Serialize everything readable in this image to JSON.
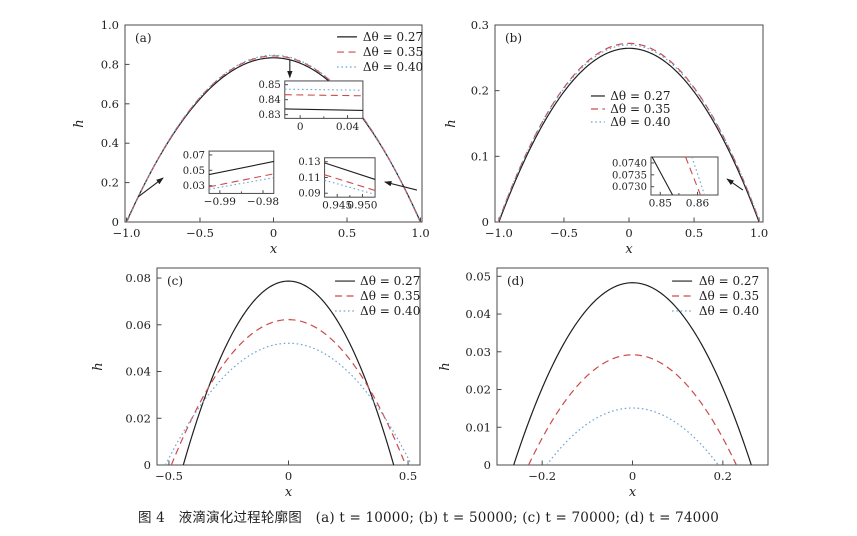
{
  "figure": {
    "caption": "图 4　液滴演化过程轮廓图　(a) t = 10000; (b) t = 50000; (c) t = 70000; (d) t = 74000"
  },
  "colors": {
    "black": "#1f1f1f",
    "red": "#cd4a4a",
    "blue": "#6fa5d3",
    "frame": "#4a4a4a",
    "text": "#1f1f1f"
  },
  "chart_data": [
    {
      "id": "a",
      "panel_label": "(a)",
      "type": "line",
      "xlabel": "x",
      "ylabel": "h",
      "xlim": [
        -1.01,
        1.01
      ],
      "ylim": [
        0,
        1.0
      ],
      "xticks": [
        -1.0,
        -0.5,
        0,
        0.5,
        1.0
      ],
      "xtick_labels": [
        "−1.0",
        "−0.5",
        "0",
        "0.5",
        "1.0"
      ],
      "yticks": [
        0,
        0.2,
        0.4,
        0.6,
        0.8,
        1.0
      ],
      "ytick_labels": [
        "0",
        "0.2",
        "0.4",
        "0.6",
        "0.8",
        "1.0"
      ],
      "series": [
        {
          "name": "Δθ = 0.27",
          "color": "black",
          "dash": "solid",
          "peak": 0.8335,
          "zero": 1.0
        },
        {
          "name": "Δθ = 0.35",
          "color": "red",
          "dash": "dashed",
          "peak": 0.843,
          "zero": 0.998
        },
        {
          "name": "Δθ = 0.40",
          "color": "blue",
          "dash": "dotted",
          "peak": 0.8465,
          "zero": 0.9965
        }
      ],
      "legend": {
        "line_x": [
          0.714,
          0.781
        ],
        "text_x": 0.801,
        "rows_y": [
          0.04,
          0.117,
          0.193
        ]
      },
      "insets": [
        {
          "pos": [
            0.538,
            0.284,
            0.263,
            0.19
          ],
          "xlim": [
            -0.013,
            0.053
          ],
          "ylim": [
            0.8275,
            0.8525
          ],
          "xticks": [
            0,
            0.04
          ],
          "xtick_labels": [
            "0",
            "0.04"
          ],
          "xminor": [
            0.02
          ],
          "yticks": [
            0.83,
            0.84,
            0.85
          ],
          "ytick_labels": [
            "0.83",
            "0.84",
            "0.85"
          ],
          "lines": [
            {
              "color": "black",
              "dash": "solid",
              "pts": [
                [
                  -0.013,
                  0.8338
                ],
                [
                  0.053,
                  0.8328
                ]
              ]
            },
            {
              "color": "red",
              "dash": "dashed",
              "pts": [
                [
                  -0.013,
                  0.8433
                ],
                [
                  0.053,
                  0.8426
                ]
              ]
            },
            {
              "color": "blue",
              "dash": "dotted",
              "pts": [
                [
                  -0.013,
                  0.847
                ],
                [
                  0.053,
                  0.8463
                ]
              ]
            }
          ]
        },
        {
          "pos": [
            0.283,
            0.64,
            0.218,
            0.215
          ],
          "xlim": [
            -0.9925,
            -0.9775
          ],
          "ylim": [
            0.02,
            0.075
          ],
          "xticks": [
            -0.99,
            -0.98
          ],
          "xtick_labels": [
            "−0.99",
            "−0.98"
          ],
          "xminor": [
            -0.985
          ],
          "yticks": [
            0.03,
            0.05,
            0.07
          ],
          "ytick_labels": [
            "0.03",
            "0.05",
            "0.07"
          ],
          "lines": [
            {
              "color": "black",
              "dash": "solid",
              "pts": [
                [
                  -0.9925,
                  0.0445
                ],
                [
                  -0.9775,
                  0.0615
                ]
              ]
            },
            {
              "color": "red",
              "dash": "dashed",
              "pts": [
                [
                  -0.9925,
                  0.0285
                ],
                [
                  -0.9775,
                  0.0455
                ]
              ]
            },
            {
              "color": "blue",
              "dash": "dotted",
              "pts": [
                [
                  -0.9925,
                  0.0255
                ],
                [
                  -0.9775,
                  0.0405
                ]
              ]
            }
          ]
        },
        {
          "pos": [
            0.672,
            0.674,
            0.17,
            0.2
          ],
          "xlim": [
            0.9425,
            0.9525
          ],
          "ylim": [
            0.085,
            0.135
          ],
          "xticks": [
            0.945,
            0.95
          ],
          "xtick_labels": [
            "0.945",
            "0.950"
          ],
          "xminor": [
            0.9475
          ],
          "yticks": [
            0.09,
            0.11,
            0.13
          ],
          "ytick_labels": [
            "0.09",
            "0.11",
            "0.13"
          ],
          "lines": [
            {
              "color": "black",
              "dash": "solid",
              "pts": [
                [
                  0.9425,
                  0.1285
                ],
                [
                  0.9525,
                  0.1075
                ]
              ]
            },
            {
              "color": "red",
              "dash": "dashed",
              "pts": [
                [
                  0.9425,
                  0.1135
                ],
                [
                  0.9525,
                  0.0935
                ]
              ]
            },
            {
              "color": "blue",
              "dash": "dotted",
              "pts": [
                [
                  0.9425,
                  0.1065
                ],
                [
                  0.9525,
                  0.0885
                ]
              ]
            }
          ]
        }
      ],
      "arrows": [
        {
          "from": [
            0.555,
            0.178
          ],
          "to": [
            0.555,
            0.266
          ]
        },
        {
          "from": [
            0.044,
            0.873
          ],
          "to": [
            0.128,
            0.777
          ]
        },
        {
          "from": [
            0.983,
            0.838
          ],
          "to": [
            0.875,
            0.797
          ]
        }
      ]
    },
    {
      "id": "b",
      "panel_label": "(b)",
      "type": "line",
      "xlabel": "x",
      "ylabel": "h",
      "xlim": [
        -1.03,
        1.03
      ],
      "ylim": [
        0,
        0.3
      ],
      "xticks": [
        -1.0,
        -0.5,
        0,
        0.5,
        1.0
      ],
      "xtick_labels": [
        "−1.0",
        "−0.5",
        "0",
        "0.5",
        "1.0"
      ],
      "yticks": [
        0,
        0.1,
        0.2,
        0.3
      ],
      "ytick_labels": [
        "0",
        "0.1",
        "0.2",
        "0.3"
      ],
      "series": [
        {
          "name": "Δθ = 0.27",
          "color": "black",
          "dash": "solid",
          "peak": 0.2645,
          "zero": 1.0
        },
        {
          "name": "Δθ = 0.35",
          "color": "red",
          "dash": "dashed",
          "peak": 0.272,
          "zero": 1.005
        },
        {
          "name": "Δθ = 0.40",
          "color": "blue",
          "dash": "dotted",
          "peak": 0.2697,
          "zero": 1.007
        }
      ],
      "legend": {
        "line_x": [
          0.358,
          0.41
        ],
        "text_x": 0.43,
        "rows_y": [
          0.34,
          0.406,
          0.472
        ]
      },
      "insets": [
        {
          "pos": [
            0.582,
            0.67,
            0.25,
            0.193
          ],
          "xlim": [
            0.8475,
            0.8655
          ],
          "ylim": [
            0.07265,
            0.07425
          ],
          "xticks": [
            0.85,
            0.86
          ],
          "xtick_labels": [
            "0.85",
            "0.86"
          ],
          "xminor": [
            0.855
          ],
          "yticks": [
            0.073,
            0.0735,
            0.074
          ],
          "ytick_labels": [
            "0.0730",
            "0.0735",
            "0.0740"
          ],
          "lines": [
            {
              "color": "black",
              "dash": "solid",
              "pts": [
                [
                  0.8478,
                  0.07425
                ],
                [
                  0.8533,
                  0.07265
                ]
              ]
            },
            {
              "color": "red",
              "dash": "dashed",
              "pts": [
                [
                  0.8568,
                  0.07425
                ],
                [
                  0.8608,
                  0.07265
                ]
              ]
            },
            {
              "color": "blue",
              "dash": "dotted",
              "pts": [
                [
                  0.8585,
                  0.07425
                ],
                [
                  0.8619,
                  0.07265
                ]
              ]
            }
          ]
        }
      ],
      "arrows": [
        {
          "from": [
            0.925,
            0.838
          ],
          "to": [
            0.866,
            0.782
          ]
        }
      ]
    },
    {
      "id": "c",
      "panel_label": "(c)",
      "type": "line",
      "xlabel": "x",
      "ylabel": "h",
      "xlim": [
        -0.55,
        0.55
      ],
      "ylim": [
        0,
        0.0843
      ],
      "xticks": [
        -0.5,
        0,
        0.5
      ],
      "xtick_labels": [
        "−0.5",
        "0",
        "0.5"
      ],
      "yticks": [
        0,
        0.02,
        0.04,
        0.06,
        0.08
      ],
      "ytick_labels": [
        "0",
        "0.02",
        "0.04",
        "0.06",
        "0.08"
      ],
      "series": [
        {
          "name": "Δθ = 0.27",
          "color": "black",
          "dash": "solid",
          "peak": 0.0787,
          "zero": 0.44
        },
        {
          "name": "Δθ = 0.35",
          "color": "red",
          "dash": "dashed",
          "peak": 0.0622,
          "zero": 0.49
        },
        {
          "name": "Δθ = 0.40",
          "color": "blue",
          "dash": "dotted",
          "peak": 0.0521,
          "zero": 0.515
        }
      ],
      "legend": {
        "line_x": [
          0.677,
          0.753
        ],
        "text_x": 0.772,
        "rows_y": [
          0.046,
          0.122,
          0.198
        ]
      },
      "insets": [],
      "arrows": []
    },
    {
      "id": "d",
      "panel_label": "(d)",
      "type": "line",
      "xlabel": "x",
      "ylabel": "h",
      "xlim": [
        -0.3,
        0.3
      ],
      "ylim": [
        0,
        0.0522
      ],
      "xticks": [
        -0.2,
        0,
        0.2
      ],
      "xtick_labels": [
        "−0.2",
        "0",
        "0.2"
      ],
      "yticks": [
        0,
        0.01,
        0.02,
        0.03,
        0.04,
        0.05
      ],
      "ytick_labels": [
        "0",
        "0.01",
        "0.02",
        "0.03",
        "0.04",
        "0.05"
      ],
      "series": [
        {
          "name": "Δθ = 0.27",
          "color": "black",
          "dash": "solid",
          "peak": 0.0483,
          "zero": 0.263
        },
        {
          "name": "Δθ = 0.35",
          "color": "red",
          "dash": "dashed",
          "peak": 0.0292,
          "zero": 0.23
        },
        {
          "name": "Δθ = 0.40",
          "color": "blue",
          "dash": "dotted",
          "peak": 0.0151,
          "zero": 0.19
        }
      ],
      "legend": {
        "line_x": [
          0.646,
          0.72
        ],
        "text_x": 0.745,
        "rows_y": [
          0.046,
          0.122,
          0.198
        ]
      },
      "insets": [],
      "arrows": []
    }
  ]
}
